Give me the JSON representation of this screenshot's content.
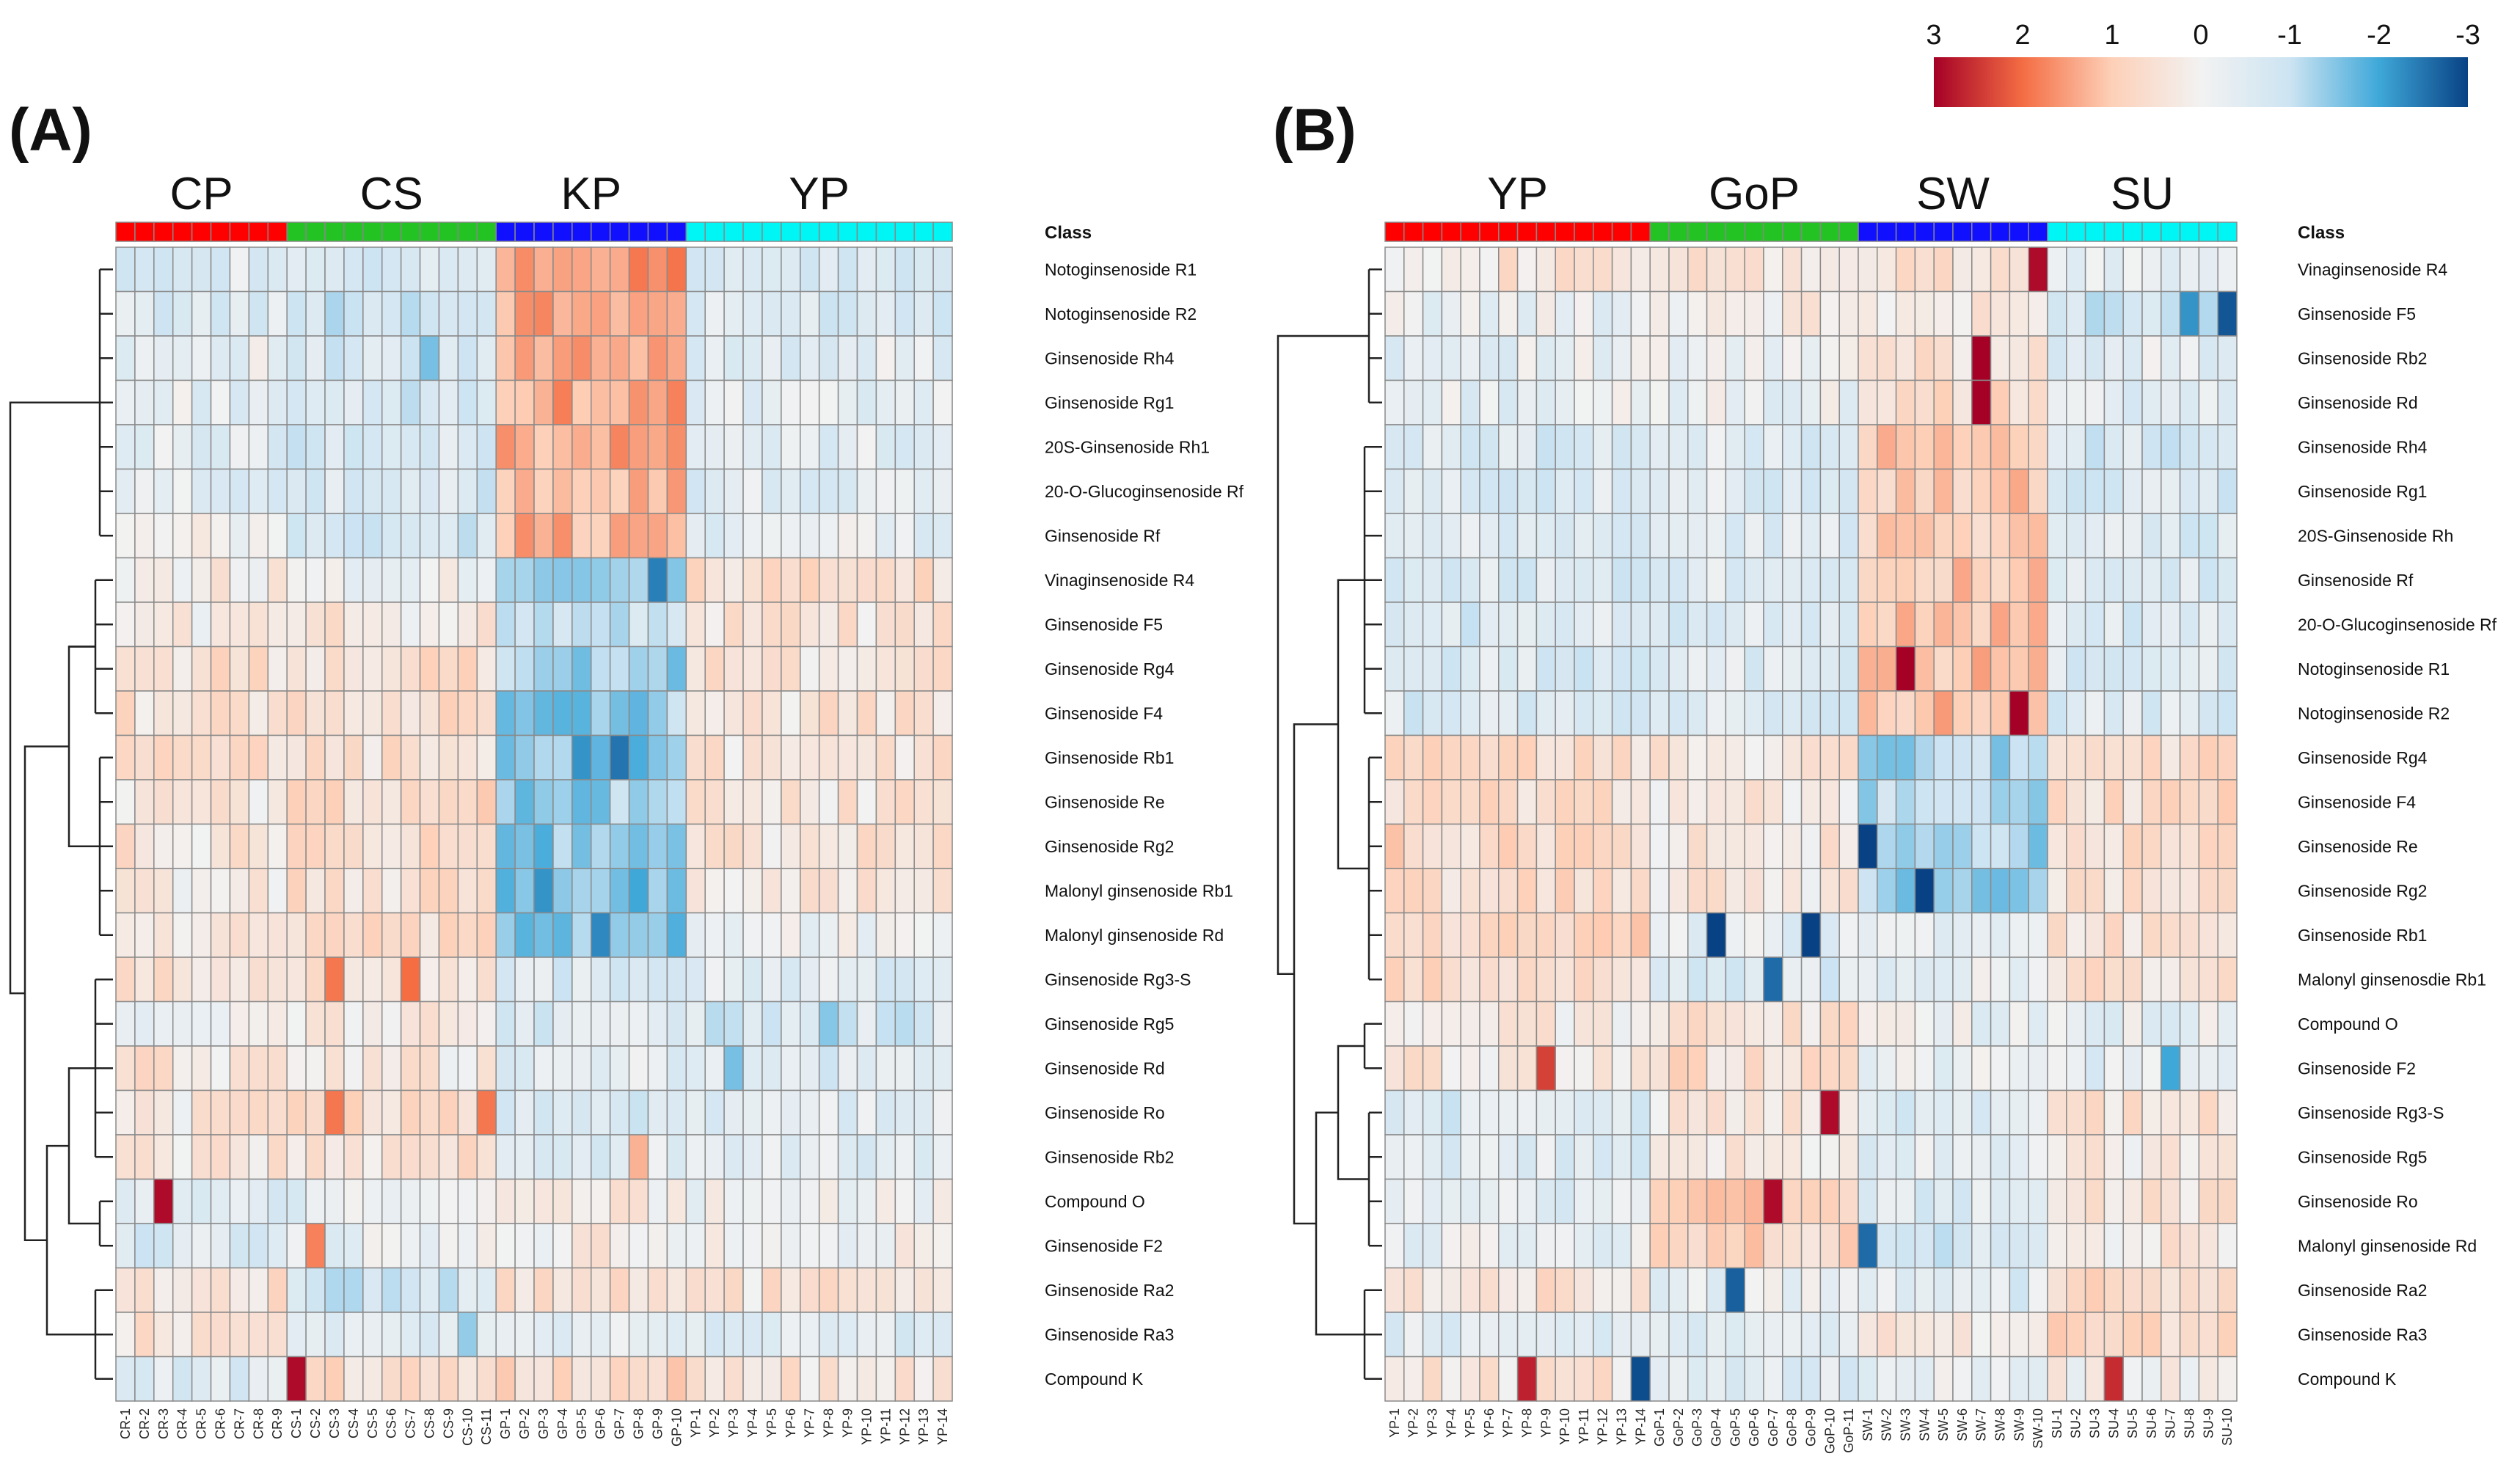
{
  "figure": {
    "panel_a": "(A)",
    "panel_b": "(B)",
    "class_label": "Class"
  },
  "colors": {
    "scale": [
      "#a50026",
      "#f46d43",
      "#fdd0b8",
      "#f2f2f2",
      "#cde4f2",
      "#3fa8d9",
      "#084285"
    ],
    "groups_a": {
      "CP": "#ff0000",
      "CS": "#22c322",
      "KP": "#1010ff",
      "YP": "#00f5f5"
    },
    "groups_b": {
      "YP": "#ff0000",
      "GoP": "#22c322",
      "SW": "#1010ff",
      "SU": "#00f5f5"
    }
  },
  "colorbar": {
    "ticks": [
      "3",
      "2",
      "1",
      "0",
      "-1",
      "-2",
      "-3"
    ]
  },
  "chart_data": [
    {
      "type": "heatmap",
      "title": "(A)",
      "value_range": [
        -3,
        3
      ],
      "groups": [
        {
          "name": "CP",
          "count": 9
        },
        {
          "name": "CS",
          "count": 11
        },
        {
          "name": "KP",
          "count": 10
        },
        {
          "name": "YP",
          "count": 14
        }
      ],
      "columns": [
        "CR-1",
        "CR-2",
        "CR-3",
        "CR-4",
        "CR-5",
        "CR-6",
        "CR-7",
        "CR-8",
        "CR-9",
        "CS-1",
        "CS-2",
        "CS-3",
        "CS-4",
        "CS-5",
        "CS-6",
        "CS-7",
        "CS-8",
        "CS-9",
        "CS-10",
        "CS-11",
        "GP-1",
        "GP-2",
        "GP-3",
        "GP-4",
        "GP-5",
        "GP-6",
        "GP-7",
        "GP-8",
        "GP-9",
        "GP-10",
        "YP-1",
        "YP-2",
        "YP-3",
        "YP-4",
        "YP-5",
        "YP-6",
        "YP-7",
        "YP-8",
        "YP-9",
        "YP-10",
        "YP-11",
        "YP-12",
        "YP-13",
        "YP-14"
      ],
      "rows": [
        "Notoginsenoside R1",
        "Notoginsenoside R2",
        "Ginsenoside Rh4",
        "Ginsenoside Rg1",
        "20S-Ginsenoside Rh1",
        "20-O-Glucoginsenoside Rf",
        "Ginsenoside Rf",
        "Vinaginsenoside R4",
        "Ginsenoside F5",
        "Ginsenoside Rg4",
        "Ginsenoside F4",
        "Ginsenoside Rb1",
        "Ginsenoside Re",
        "Ginsenoside Rg2",
        "Malonyl ginsenoside Rb1",
        "Malonyl ginsenoside Rd",
        "Ginsenoside Rg3-S",
        "Ginsenoside Rg5",
        "Ginsenoside Rd",
        "Ginsenoside Ro",
        "Ginsenoside Rb2",
        "Compound O",
        "Ginsenoside F2",
        "Ginsenoside Ra2",
        "Ginsenoside Ra3",
        "Compound K"
      ],
      "group_row_means": [
        [
          -0.5,
          -0.8,
          1.5,
          -0.7
        ],
        [
          -0.6,
          -0.8,
          1.4,
          -0.6
        ],
        [
          -0.2,
          -0.8,
          1.3,
          -0.4
        ],
        [
          -0.3,
          -0.8,
          1.4,
          -0.4
        ],
        [
          -0.4,
          -0.7,
          1.4,
          -0.4
        ],
        [
          -0.4,
          -0.7,
          1.3,
          -0.5
        ],
        [
          -0.1,
          -0.8,
          1.3,
          -0.3
        ],
        [
          0.2,
          0.0,
          -1.2,
          0.5
        ],
        [
          0.2,
          0.3,
          -0.9,
          0.4
        ],
        [
          0.5,
          0.6,
          -1.3,
          0.4
        ],
        [
          0.5,
          0.6,
          -1.4,
          0.4
        ],
        [
          0.5,
          0.5,
          -1.5,
          0.4
        ],
        [
          0.3,
          0.7,
          -1.4,
          0.4
        ],
        [
          0.4,
          0.6,
          -1.5,
          0.4
        ],
        [
          0.2,
          0.5,
          -1.6,
          0.4
        ],
        [
          0.3,
          0.5,
          -1.5,
          -0.1
        ],
        [
          0.4,
          0.5,
          -0.6,
          -0.5
        ],
        [
          -0.2,
          0.3,
          -0.6,
          -0.7
        ],
        [
          0.4,
          0.3,
          -0.4,
          -0.6
        ],
        [
          0.3,
          0.7,
          -0.6,
          -0.5
        ],
        [
          0.3,
          0.5,
          -0.5,
          -0.4
        ],
        [
          -0.6,
          -0.3,
          0.3,
          -0.1
        ],
        [
          -0.6,
          -0.2,
          0.2,
          0.0
        ],
        [
          0.5,
          -0.8,
          0.4,
          0.4
        ],
        [
          0.4,
          -0.4,
          -0.4,
          -0.5
        ],
        [
          -0.5,
          0.6,
          0.7,
          0.4
        ]
      ],
      "outliers": [
        {
          "row": 21,
          "col": 2,
          "value": 2.9
        },
        {
          "row": 25,
          "col": 9,
          "value": 2.9
        },
        {
          "row": 22,
          "col": 10,
          "value": 1.8
        },
        {
          "row": 16,
          "col": 11,
          "value": 1.9
        },
        {
          "row": 19,
          "col": 11,
          "value": 1.9
        },
        {
          "row": 16,
          "col": 15,
          "value": 2.0
        },
        {
          "row": 19,
          "col": 19,
          "value": 1.9
        },
        {
          "row": 2,
          "col": 16,
          "value": -1.6
        },
        {
          "row": 7,
          "col": 28,
          "value": -2.4
        },
        {
          "row": 11,
          "col": 26,
          "value": -2.5
        },
        {
          "row": 11,
          "col": 24,
          "value": -2.2
        },
        {
          "row": 14,
          "col": 22,
          "value": -2.2
        },
        {
          "row": 15,
          "col": 25,
          "value": -2.3
        },
        {
          "row": 18,
          "col": 32,
          "value": -1.6
        },
        {
          "row": 17,
          "col": 37,
          "value": -1.5
        },
        {
          "row": 24,
          "col": 18,
          "value": -1.4
        },
        {
          "row": 20,
          "col": 27,
          "value": 1.3
        }
      ]
    },
    {
      "type": "heatmap",
      "title": "(B)",
      "value_range": [
        -3,
        3
      ],
      "groups": [
        {
          "name": "YP",
          "count": 14
        },
        {
          "name": "GoP",
          "count": 11
        },
        {
          "name": "SW",
          "count": 10
        },
        {
          "name": "SU",
          "count": 10
        }
      ],
      "columns": [
        "YP-1",
        "YP-2",
        "YP-3",
        "YP-4",
        "YP-5",
        "YP-6",
        "YP-7",
        "YP-8",
        "YP-9",
        "YP-10",
        "YP-11",
        "YP-12",
        "YP-13",
        "YP-14",
        "GoP-1",
        "GoP-2",
        "GoP-3",
        "GoP-4",
        "GoP-5",
        "GoP-6",
        "GoP-7",
        "GoP-8",
        "GoP-9",
        "GoP-10",
        "GoP-11",
        "SW-1",
        "SW-2",
        "SW-3",
        "SW-4",
        "SW-5",
        "SW-6",
        "SW-7",
        "SW-8",
        "SW-9",
        "SW-10",
        "SU-1",
        "SU-2",
        "SU-3",
        "SU-4",
        "SU-5",
        "SU-6",
        "SU-7",
        "SU-8",
        "SU-9",
        "SU-10"
      ],
      "rows": [
        "Vinaginsenoside R4",
        "Ginsenoside F5",
        "Ginsenoside Rb2",
        "Ginsenoside Rd",
        "Ginsenoside Rh4",
        "Ginsenoside Rg1",
        "20S-Ginsenoside Rh",
        "Ginsenoside Rf",
        "20-O-Glucoginsenoside Rf",
        "Notoginsenoside R1",
        "Notoginsenoside R2",
        "Ginsenoside Rg4",
        "Ginsenoside F4",
        "Ginsenoside Re",
        "Ginsenoside Rg2",
        "Ginsenoside Rb1",
        "Malonyl ginsenosdie Rb1",
        "Compound O",
        "Ginsenoside F2",
        "Ginsenoside Rg3-S",
        "Ginsenoside Rg5",
        "Ginsenoside Ro",
        "Malonyl ginsenoside Rd",
        "Ginsenoside Ra2",
        "Ginsenoside Ra3",
        "Compound K"
      ],
      "group_row_means": [
        [
          0.4,
          0.3,
          0.4,
          -0.3
        ],
        [
          -0.2,
          0.2,
          0.2,
          -0.8
        ],
        [
          -0.3,
          -0.2,
          0.5,
          -0.4
        ],
        [
          -0.3,
          -0.2,
          0.6,
          -0.5
        ],
        [
          -0.6,
          -0.5,
          1.0,
          -0.7
        ],
        [
          -0.6,
          -0.5,
          1.0,
          -0.7
        ],
        [
          -0.6,
          -0.5,
          1.0,
          -0.6
        ],
        [
          -0.6,
          -0.4,
          1.0,
          -0.7
        ],
        [
          -0.6,
          -0.5,
          1.1,
          -0.6
        ],
        [
          -0.6,
          -0.5,
          1.1,
          -0.6
        ],
        [
          -0.6,
          -0.5,
          1.1,
          -0.6
        ],
        [
          0.6,
          0.3,
          -1.2,
          0.6
        ],
        [
          0.6,
          0.3,
          -1.2,
          0.6
        ],
        [
          0.7,
          0.3,
          -1.3,
          0.5
        ],
        [
          0.6,
          0.3,
          -1.3,
          0.5
        ],
        [
          0.7,
          -0.4,
          -0.2,
          0.5
        ],
        [
          0.6,
          -0.6,
          -0.3,
          0.5
        ],
        [
          0.2,
          0.5,
          -0.2,
          -0.3
        ],
        [
          0.3,
          0.6,
          -0.3,
          -0.4
        ],
        [
          -0.6,
          0.4,
          -0.5,
          0.4
        ],
        [
          -0.5,
          0.2,
          -0.4,
          0.3
        ],
        [
          -0.4,
          0.9,
          -0.5,
          0.4
        ],
        [
          -0.2,
          0.8,
          -0.7,
          0.3
        ],
        [
          0.5,
          -0.3,
          -0.5,
          0.6
        ],
        [
          -0.5,
          -0.4,
          0.3,
          0.7
        ],
        [
          0.4,
          -0.5,
          -0.3,
          0.1
        ]
      ],
      "outliers": [
        {
          "row": 0,
          "col": 34,
          "value": 2.9
        },
        {
          "row": 1,
          "col": 44,
          "value": -2.8
        },
        {
          "row": 2,
          "col": 31,
          "value": 3.0
        },
        {
          "row": 3,
          "col": 31,
          "value": 3.0
        },
        {
          "row": 9,
          "col": 27,
          "value": 3.0
        },
        {
          "row": 10,
          "col": 33,
          "value": 3.0
        },
        {
          "row": 13,
          "col": 25,
          "value": -3.0
        },
        {
          "row": 14,
          "col": 28,
          "value": -3.0
        },
        {
          "row": 15,
          "col": 17,
          "value": -3.0
        },
        {
          "row": 15,
          "col": 22,
          "value": -3.0
        },
        {
          "row": 16,
          "col": 20,
          "value": -2.6
        },
        {
          "row": 19,
          "col": 23,
          "value": 2.9
        },
        {
          "row": 21,
          "col": 20,
          "value": 2.9
        },
        {
          "row": 18,
          "col": 8,
          "value": 2.4
        },
        {
          "row": 25,
          "col": 7,
          "value": 2.7
        },
        {
          "row": 25,
          "col": 13,
          "value": -2.9
        },
        {
          "row": 25,
          "col": 38,
          "value": 2.6
        },
        {
          "row": 23,
          "col": 18,
          "value": -2.7
        },
        {
          "row": 22,
          "col": 25,
          "value": -2.6
        },
        {
          "row": 1,
          "col": 42,
          "value": -2.2
        },
        {
          "row": 18,
          "col": 41,
          "value": -2.0
        }
      ]
    }
  ]
}
